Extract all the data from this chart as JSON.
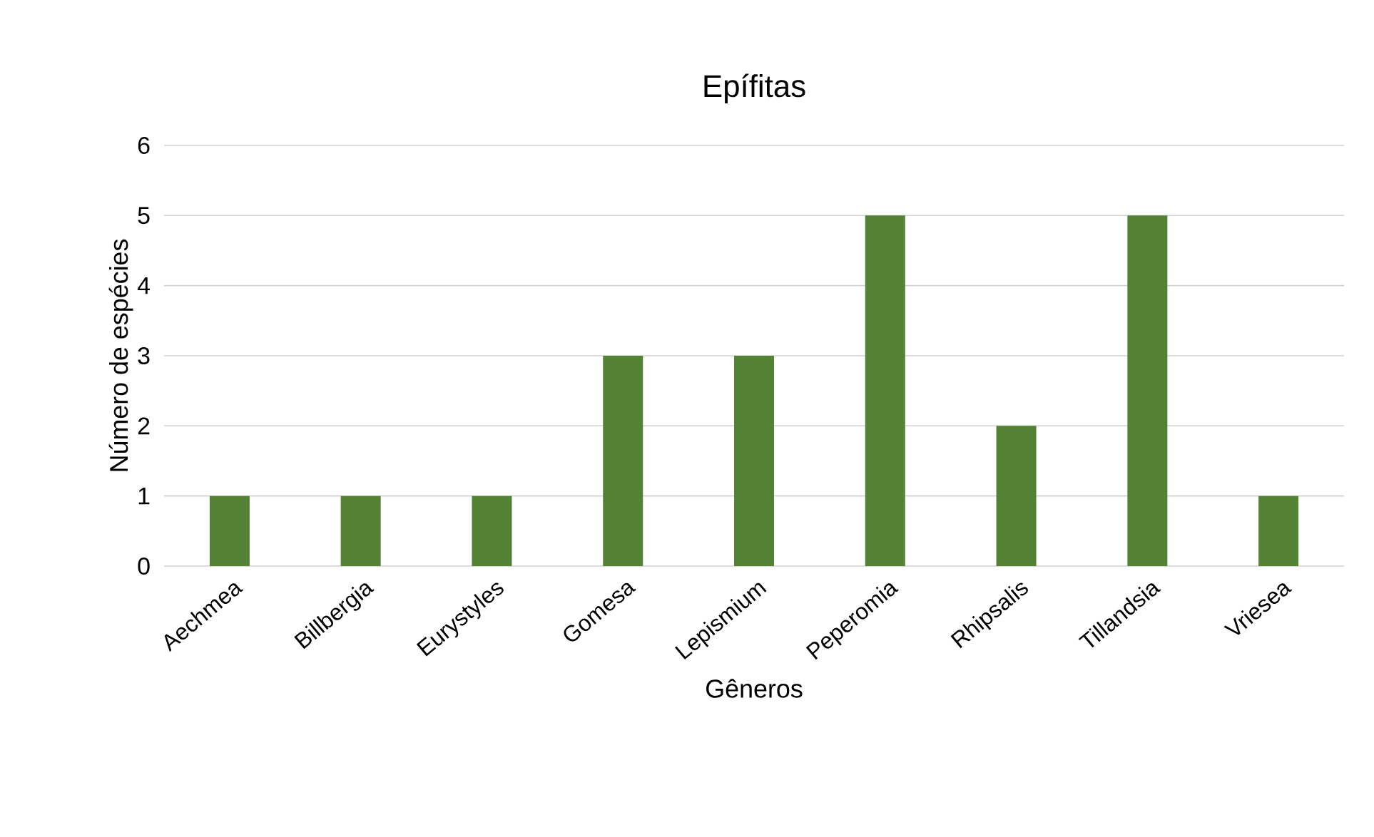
{
  "chart_data": {
    "type": "bar",
    "title": "Epífitas",
    "xlabel": "Gêneros",
    "ylabel": "Número  de espécies",
    "categories": [
      "Aechmea",
      "Billbergia",
      "Eurystyles",
      "Gomesa",
      "Lepismium",
      "Peperomia",
      "Rhipsalis",
      "Tillandsia",
      "Vriesea"
    ],
    "values": [
      1,
      1,
      1,
      3,
      3,
      5,
      2,
      5,
      1
    ],
    "color": "#548235",
    "ylim": [
      0,
      6
    ],
    "yticks": [
      0,
      1,
      2,
      3,
      4,
      5,
      6
    ],
    "grid": "y"
  }
}
